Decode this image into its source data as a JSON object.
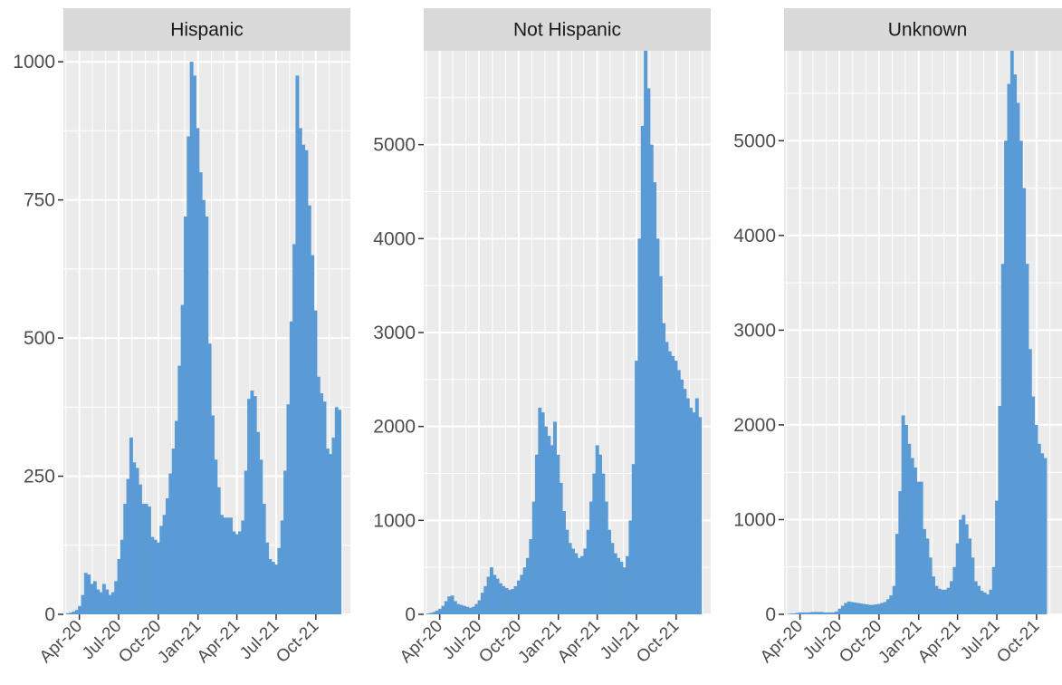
{
  "colors": {
    "bar": "#5b9bd5",
    "panel": "#ebebeb",
    "strip": "#d9d9d9",
    "grid": "#ffffff",
    "tick_text": "#4d4d4d"
  },
  "chart_data": [
    {
      "type": "bar",
      "title": "Hispanic",
      "ylim": [
        0,
        1020
      ],
      "yticks": [
        0,
        250,
        500,
        750,
        1000
      ],
      "ytick_labels": [
        "0",
        "250",
        "500",
        "750",
        "1000"
      ],
      "xticks": [
        "Apr-20",
        "Jul-20",
        "Oct-20",
        "Jan-21",
        "Apr-21",
        "Jul-21",
        "Oct-21"
      ],
      "grid": true,
      "x_start": "2020-03-01",
      "bin_days": 7,
      "values": [
        2,
        3,
        5,
        8,
        15,
        35,
        75,
        72,
        55,
        60,
        45,
        40,
        55,
        45,
        35,
        40,
        60,
        100,
        135,
        200,
        245,
        320,
        275,
        265,
        235,
        200,
        200,
        195,
        140,
        135,
        130,
        160,
        180,
        210,
        255,
        300,
        350,
        450,
        560,
        720,
        865,
        1000,
        975,
        880,
        800,
        750,
        720,
        490,
        360,
        280,
        230,
        180,
        175,
        175,
        175,
        150,
        145,
        150,
        170,
        260,
        390,
        405,
        395,
        330,
        280,
        200,
        130,
        100,
        95,
        90,
        120,
        170,
        260,
        380,
        530,
        670,
        975,
        880,
        850,
        840,
        740,
        650,
        550,
        430,
        400,
        385,
        300,
        290,
        320,
        375,
        370
      ]
    },
    {
      "type": "bar",
      "title": "Not Hispanic",
      "ylim": [
        0,
        6000
      ],
      "yticks": [
        0,
        1000,
        2000,
        3000,
        4000,
        5000
      ],
      "ytick_labels": [
        "0",
        "1000",
        "2000",
        "3000",
        "4000",
        "5000"
      ],
      "xticks": [
        "Apr-20",
        "Jul-20",
        "Oct-20",
        "Jan-21",
        "Apr-21",
        "Jul-21",
        "Oct-21"
      ],
      "grid": true,
      "x_start": "2020-03-01",
      "bin_days": 7,
      "values": [
        10,
        15,
        25,
        40,
        60,
        90,
        140,
        190,
        200,
        140,
        110,
        100,
        90,
        80,
        70,
        80,
        110,
        150,
        230,
        300,
        400,
        500,
        420,
        380,
        330,
        300,
        280,
        260,
        270,
        300,
        360,
        420,
        500,
        600,
        800,
        1200,
        1700,
        2200,
        2150,
        2000,
        1900,
        1800,
        2050,
        1700,
        1400,
        1100,
        900,
        760,
        700,
        650,
        600,
        620,
        700,
        900,
        1200,
        1500,
        1800,
        1700,
        1500,
        1200,
        900,
        760,
        650,
        600,
        560,
        500,
        620,
        1000,
        1600,
        2700,
        4000,
        5200,
        6000,
        5600,
        5000,
        4600,
        4000,
        3600,
        3100,
        2900,
        2800,
        2750,
        2700,
        2600,
        2500,
        2400,
        2300,
        2200,
        2150,
        2300,
        2100
      ]
    },
    {
      "type": "bar",
      "title": "Unknown",
      "ylim": [
        0,
        5950
      ],
      "yticks": [
        0,
        1000,
        2000,
        3000,
        4000,
        5000
      ],
      "ytick_labels": [
        "0",
        "1000",
        "2000",
        "3000",
        "4000",
        "5000"
      ],
      "xticks": [
        "Apr-20",
        "Jul-20",
        "Oct-20",
        "Jan-21",
        "Apr-21",
        "Jul-21",
        "Oct-21"
      ],
      "grid": true,
      "x_start": "2020-03-01",
      "bin_days": 7,
      "values": [
        5,
        8,
        10,
        15,
        20,
        20,
        20,
        20,
        25,
        25,
        25,
        25,
        20,
        20,
        20,
        20,
        30,
        60,
        90,
        120,
        135,
        130,
        125,
        120,
        115,
        110,
        105,
        100,
        100,
        105,
        110,
        120,
        130,
        160,
        200,
        300,
        850,
        1300,
        2100,
        2000,
        1800,
        1650,
        1550,
        1400,
        1400,
        900,
        800,
        600,
        400,
        300,
        270,
        260,
        260,
        280,
        350,
        500,
        750,
        1000,
        1050,
        950,
        800,
        600,
        350,
        300,
        250,
        230,
        210,
        260,
        500,
        1200,
        2200,
        3700,
        5000,
        5600,
        5950,
        5700,
        5400,
        5000,
        4500,
        3700,
        2800,
        2300,
        2000,
        1800,
        1700,
        1650
      ]
    }
  ]
}
